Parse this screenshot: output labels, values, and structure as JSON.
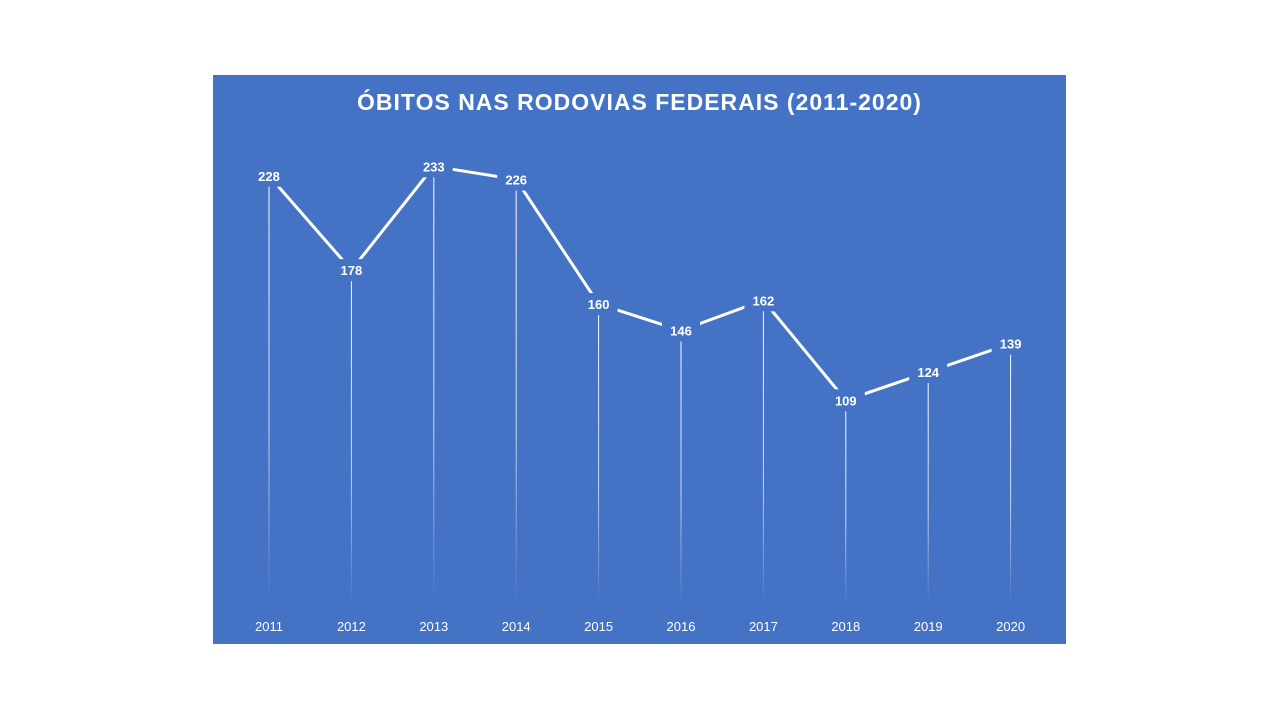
{
  "chart_data": {
    "type": "line",
    "title": "ÓBITOS NAS RODOVIAS FEDERAIS (2011-2020)",
    "xlabel": "",
    "ylabel": "",
    "categories": [
      "2011",
      "2012",
      "2013",
      "2014",
      "2015",
      "2016",
      "2017",
      "2018",
      "2019",
      "2020"
    ],
    "values": [
      228,
      178,
      233,
      226,
      160,
      146,
      162,
      109,
      124,
      139
    ],
    "ylim": [
      0,
      250
    ],
    "grid": false,
    "drop_lines": true,
    "colors": {
      "background": "#4472C4",
      "line": "#FFFFFF",
      "text": "#FFFFFF"
    }
  }
}
